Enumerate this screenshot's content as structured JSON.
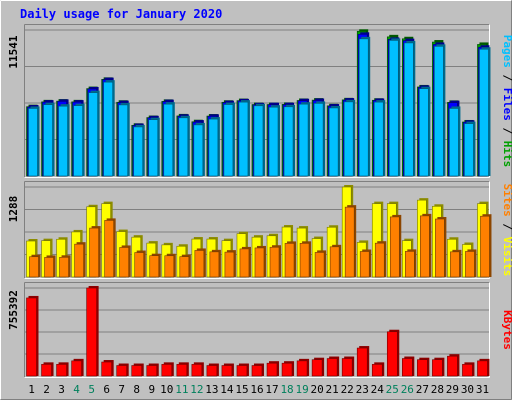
{
  "chart_data": {
    "type": "bar",
    "title": "Daily usage for January 2020",
    "days": [
      "1",
      "2",
      "3",
      "4",
      "5",
      "6",
      "7",
      "8",
      "9",
      "10",
      "11",
      "12",
      "13",
      "14",
      "15",
      "16",
      "17",
      "18",
      "19",
      "20",
      "21",
      "22",
      "23",
      "24",
      "25",
      "26",
      "27",
      "28",
      "29",
      "30",
      "31"
    ],
    "weekend_days": [
      "4",
      "5",
      "11",
      "12",
      "18",
      "19",
      "25",
      "26"
    ],
    "panels": [
      {
        "id": "hits-files-pages",
        "max_label": "11541",
        "ymax": 11541,
        "right_label_parts": [
          "Pages",
          " / ",
          "Files",
          " / ",
          "Hits"
        ],
        "series": [
          {
            "name": "Hits",
            "color": "#00a000",
            "values": [
              5480,
              5860,
              5920,
              5860,
              6910,
              7640,
              5830,
              4010,
              4620,
              5900,
              4750,
              4290,
              4740,
              5830,
              5960,
              5650,
              5650,
              5660,
              5970,
              6000,
              5550,
              6020,
              11441,
              5990,
              11000,
              10848,
              7040,
              10590,
              5820,
              4270,
              10400
            ]
          },
          {
            "name": "Files",
            "color": "#0000ff",
            "values": [
              5450,
              5840,
              5900,
              5840,
              6880,
              7620,
              5800,
              3990,
              4600,
              5880,
              4720,
              4260,
              4720,
              5800,
              5940,
              5630,
              5640,
              5640,
              5950,
              5970,
              5530,
              6000,
              11200,
              5970,
              10800,
              10700,
              7010,
              10400,
              5800,
              4250,
              10180
            ]
          },
          {
            "name": "Pages",
            "color": "#00c0ff",
            "values": [
              5340,
              5640,
              5520,
              5560,
              6590,
              7420,
              5620,
              3880,
              4450,
              5680,
              4600,
              4040,
              4500,
              5650,
              5840,
              5550,
              5440,
              5470,
              5680,
              5740,
              5380,
              5860,
              10840,
              5840,
              10720,
              10520,
              6900,
              10250,
              5340,
              4140,
              10020
            ]
          }
        ]
      },
      {
        "id": "visits-sites",
        "max_label": "1288",
        "ymax": 1288,
        "right_label_parts": [
          "Sites",
          " / ",
          "Visits"
        ],
        "series": [
          {
            "name": "Visits",
            "color": "#ffff00",
            "values": [
              515,
              520,
              540,
              645,
              1005,
              1050,
              650,
              570,
              485,
              460,
              440,
              543,
              543,
              520,
              620,
              570,
              590,
              715,
              700,
              550,
              712,
              1288,
              495,
              1050,
              1050,
              520,
              1100,
              1012,
              540,
              465,
              1050
            ]
          },
          {
            "name": "Sites",
            "color": "#ff8000",
            "values": [
              290,
              280,
              282,
              470,
              700,
              810,
              423,
              350,
              305,
              304,
              291,
              380,
              360,
              356,
              402,
              416,
              426,
              481,
              482,
              352,
              432,
              1000,
              365,
              484,
              860,
              367,
              875,
              830,
              360,
              366,
              870
            ]
          }
        ]
      },
      {
        "id": "kbytes",
        "max_label": "755392",
        "ymax": 755392,
        "right_label_parts": [
          "KBytes"
        ],
        "series": [
          {
            "name": "KBytes",
            "color": "#ff0000",
            "values": [
              670000,
              100000,
              100000,
              130000,
              790000,
              120000,
              90000,
              90000,
              90000,
              100000,
              100000,
              100000,
              90000,
              90000,
              90000,
              90000,
              110000,
              110000,
              130000,
              140000,
              150000,
              150000,
              240000,
              100000,
              380000,
              150000,
              140000,
              140000,
              170000,
              100000,
              130000
            ]
          }
        ]
      }
    ],
    "colors": {
      "background": "#c0c0c0",
      "plot_bg": "#c0c0c0",
      "title": "#0000ff",
      "weekday_label": "#000000",
      "weekend_label": "#00805c"
    }
  }
}
